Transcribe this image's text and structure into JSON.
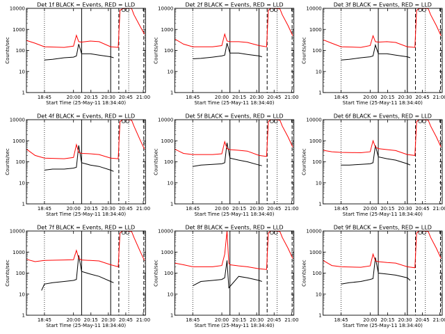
{
  "chart_data": [
    {
      "type": "line",
      "title": "Det 1f BLACK = Events, RED = LLD",
      "xlabel": "Start Time (25-May-11 18:34:40)",
      "ylabel": "Counts/sec",
      "ylog": true,
      "ylim": [
        1,
        10000
      ],
      "xlim": [
        1115,
        1320
      ],
      "xticks": [
        "18:45",
        "20:00",
        "20:15",
        "20:30",
        "20:45",
        "21:00"
      ],
      "y_tick_labels": [
        "1",
        "10",
        "100",
        "1000",
        "10000"
      ],
      "solid_markers": [
        1210,
        1260
      ],
      "dotted_markers": [
        1146,
        1291
      ],
      "dashed_markers": [
        1274,
        1317
      ],
      "series": [
        {
          "name": "BLACK = Events",
          "color": "#000000",
          "x": [
            1146,
            1160,
            1180,
            1196,
            1201,
            1205,
            1210,
            1225,
            1240,
            1260,
            1265
          ],
          "y": [
            35,
            38,
            45,
            48,
            55,
            200,
            70,
            70,
            60,
            50,
            45
          ]
        },
        {
          "name": "RED = LLD",
          "color": "#ff0000",
          "x": [
            1115,
            1130,
            1146,
            1180,
            1196,
            1201,
            1205,
            1210,
            1225,
            1240,
            1260,
            1273,
            1276,
            1280,
            1286,
            1296,
            1300,
            1310,
            1318
          ],
          "y": [
            300,
            220,
            150,
            140,
            160,
            520,
            260,
            250,
            280,
            260,
            150,
            140,
            8000,
            9500,
            10000,
            9800,
            5000,
            1500,
            600
          ]
        }
      ]
    },
    {
      "type": "line",
      "title": "Det 2f BLACK = Events, RED = LLD",
      "xlabel": "Start Time (25-May-11 18:34:40)",
      "ylabel": "Counts/sec",
      "ylog": true,
      "ylim": [
        1,
        10000
      ],
      "xlim": [
        1115,
        1320
      ],
      "xticks": [
        "18:45",
        "20:00",
        "20:15",
        "20:30",
        "20:45",
        "21:00"
      ],
      "y_tick_labels": [
        "1",
        "10",
        "100",
        "1000",
        "10000"
      ],
      "solid_markers": [
        1210,
        1260
      ],
      "dotted_markers": [
        1146,
        1291
      ],
      "dashed_markers": [
        1274,
        1317
      ],
      "series": [
        {
          "name": "BLACK = Events",
          "color": "#000000",
          "x": [
            1146,
            1160,
            1180,
            1196,
            1201,
            1205,
            1210,
            1225,
            1240,
            1260,
            1265
          ],
          "y": [
            40,
            42,
            48,
            55,
            60,
            220,
            75,
            75,
            65,
            55,
            50
          ]
        },
        {
          "name": "RED = LLD",
          "color": "#ff0000",
          "x": [
            1115,
            1130,
            1146,
            1180,
            1196,
            1201,
            1205,
            1210,
            1225,
            1240,
            1260,
            1273,
            1276,
            1280,
            1286,
            1296,
            1300,
            1310,
            1318
          ],
          "y": [
            350,
            200,
            150,
            150,
            170,
            600,
            280,
            260,
            260,
            240,
            170,
            150,
            8000,
            10000,
            10000,
            9500,
            5000,
            1500,
            500
          ]
        }
      ]
    },
    {
      "type": "line",
      "title": "Det 3f BLACK = Events, RED = LLD",
      "xlabel": "Start Time (25-May-11 18:34:40)",
      "ylabel": "Counts/sec",
      "ylog": true,
      "ylim": [
        1,
        10000
      ],
      "xlim": [
        1115,
        1320
      ],
      "xticks": [
        "18:45",
        "20:00",
        "20:15",
        "20:30",
        "20:45",
        "21:00"
      ],
      "y_tick_labels": [
        "1",
        "10",
        "100",
        "1000",
        "10000"
      ],
      "solid_markers": [
        1210,
        1260
      ],
      "dotted_markers": [
        1146,
        1291
      ],
      "dashed_markers": [
        1274,
        1317
      ],
      "series": [
        {
          "name": "BLACK = Events",
          "color": "#000000",
          "x": [
            1146,
            1160,
            1180,
            1196,
            1201,
            1205,
            1210,
            1225,
            1240,
            1260,
            1265
          ],
          "y": [
            35,
            38,
            45,
            50,
            55,
            180,
            70,
            70,
            60,
            50,
            45
          ]
        },
        {
          "name": "RED = LLD",
          "color": "#ff0000",
          "x": [
            1115,
            1130,
            1146,
            1180,
            1196,
            1201,
            1205,
            1210,
            1225,
            1240,
            1260,
            1273,
            1276,
            1280,
            1286,
            1296,
            1300,
            1310,
            1318
          ],
          "y": [
            320,
            220,
            150,
            140,
            170,
            500,
            260,
            250,
            260,
            240,
            150,
            140,
            8000,
            9800,
            10000,
            9600,
            5000,
            1500,
            500
          ]
        }
      ]
    },
    {
      "type": "line",
      "title": "Det 4f BLACK = Events, RED = LLD",
      "xlabel": "Start Time (25-May-11 18:34:40)",
      "ylabel": "Counts/sec",
      "ylog": true,
      "ylim": [
        1,
        10000
      ],
      "xlim": [
        1115,
        1320
      ],
      "xticks": [
        "18:45",
        "20:00",
        "20:15",
        "20:30",
        "20:45",
        "21:00"
      ],
      "y_tick_labels": [
        "1",
        "10",
        "100",
        "1000",
        "10000"
      ],
      "solid_markers": [
        1210,
        1260
      ],
      "dotted_markers": [
        1146,
        1291
      ],
      "dashed_markers": [
        1274,
        1317
      ],
      "series": [
        {
          "name": "BLACK = Events",
          "color": "#000000",
          "x": [
            1146,
            1160,
            1180,
            1196,
            1201,
            1205,
            1210,
            1225,
            1240,
            1260,
            1265
          ],
          "y": [
            40,
            45,
            45,
            50,
            55,
            600,
            90,
            70,
            60,
            40,
            35
          ]
        },
        {
          "name": "RED = LLD",
          "color": "#ff0000",
          "x": [
            1115,
            1130,
            1146,
            1180,
            1196,
            1201,
            1205,
            1210,
            1225,
            1240,
            1260,
            1273,
            1276,
            1280,
            1286,
            1296,
            1300,
            1310,
            1318
          ],
          "y": [
            400,
            200,
            150,
            140,
            160,
            650,
            280,
            250,
            240,
            220,
            150,
            140,
            8000,
            10000,
            10000,
            9500,
            5000,
            1200,
            400
          ]
        }
      ]
    },
    {
      "type": "line",
      "title": "Det 5f BLACK = Events, RED = LLD",
      "xlabel": "Start Time (25-May-11 18:34:40)",
      "ylabel": "Counts/sec",
      "ylog": true,
      "ylim": [
        1,
        10000
      ],
      "xlim": [
        1115,
        1320
      ],
      "xticks": [
        "18:45",
        "20:00",
        "20:15",
        "20:30",
        "20:45",
        "21:00"
      ],
      "y_tick_labels": [
        "1",
        "10",
        "100",
        "1000",
        "10000"
      ],
      "solid_markers": [
        1210,
        1260
      ],
      "dotted_markers": [
        1146,
        1291
      ],
      "dashed_markers": [
        1274,
        1317
      ],
      "series": [
        {
          "name": "BLACK = Events",
          "color": "#000000",
          "x": [
            1146,
            1160,
            1180,
            1196,
            1201,
            1205,
            1210,
            1225,
            1240,
            1260,
            1265
          ],
          "y": [
            60,
            70,
            75,
            80,
            90,
            800,
            150,
            120,
            100,
            70,
            65
          ]
        },
        {
          "name": "RED = LLD",
          "color": "#ff0000",
          "x": [
            1115,
            1130,
            1146,
            1180,
            1196,
            1201,
            1205,
            1210,
            1225,
            1240,
            1260,
            1273,
            1276,
            1280,
            1286,
            1296,
            1300,
            1310,
            1318
          ],
          "y": [
            400,
            250,
            220,
            220,
            240,
            900,
            420,
            380,
            350,
            320,
            200,
            180,
            8000,
            10000,
            10000,
            9500,
            5000,
            1500,
            500
          ]
        }
      ]
    },
    {
      "type": "line",
      "title": "Det 6f BLACK = Events, RED = LLD",
      "xlabel": "Start Time (25-May-11 18:34:40)",
      "ylabel": "Counts/sec",
      "ylog": true,
      "ylim": [
        1,
        10000
      ],
      "xlim": [
        1115,
        1320
      ],
      "xticks": [
        "18:45",
        "20:00",
        "20:15",
        "20:30",
        "20:45",
        "21:00"
      ],
      "y_tick_labels": [
        "1",
        "10",
        "100",
        "1000",
        "10000"
      ],
      "solid_markers": [
        1210,
        1260
      ],
      "dotted_markers": [
        1146,
        1291
      ],
      "dashed_markers": [
        1274,
        1317
      ],
      "series": [
        {
          "name": "BLACK = Events",
          "color": "#000000",
          "x": [
            1146,
            1160,
            1180,
            1196,
            1201,
            1205,
            1210,
            1225,
            1240,
            1260,
            1265
          ],
          "y": [
            70,
            70,
            75,
            80,
            90,
            600,
            170,
            140,
            120,
            80,
            70
          ]
        },
        {
          "name": "RED = LLD",
          "color": "#ff0000",
          "x": [
            1115,
            1130,
            1146,
            1180,
            1196,
            1201,
            1205,
            1210,
            1225,
            1240,
            1260,
            1273,
            1276,
            1280,
            1286,
            1296,
            1300,
            1310,
            1318
          ],
          "y": [
            350,
            300,
            280,
            270,
            300,
            1000,
            500,
            420,
            380,
            340,
            220,
            200,
            8000,
            10000,
            10000,
            9500,
            5000,
            1500,
            500
          ]
        }
      ]
    },
    {
      "type": "line",
      "title": "Det 7f BLACK = Events, RED = LLD",
      "xlabel": "Start Time (25-May-11 18:34:40)",
      "ylabel": "Counts/sec",
      "ylog": true,
      "ylim": [
        1,
        10000
      ],
      "xlim": [
        1115,
        1320
      ],
      "xticks": [
        "18:45",
        "20:00",
        "20:15",
        "20:30",
        "20:45",
        "21:00"
      ],
      "y_tick_labels": [
        "1",
        "10",
        "100",
        "1000",
        "10000"
      ],
      "solid_markers": [
        1210,
        1260
      ],
      "dotted_markers": [
        1146,
        1291
      ],
      "dashed_markers": [
        1274,
        1317
      ],
      "series": [
        {
          "name": "BLACK = Events",
          "color": "#000000",
          "x": [
            1141,
            1146,
            1160,
            1180,
            1196,
            1201,
            1205,
            1210,
            1225,
            1240,
            1260,
            1265
          ],
          "y": [
            15,
            30,
            35,
            40,
            45,
            50,
            700,
            120,
            90,
            70,
            40,
            35
          ]
        },
        {
          "name": "RED = LLD",
          "color": "#ff0000",
          "x": [
            1115,
            1130,
            1146,
            1180,
            1196,
            1201,
            1205,
            1210,
            1225,
            1240,
            1260,
            1273,
            1276,
            1280,
            1286,
            1296,
            1300,
            1310,
            1318
          ],
          "y": [
            450,
            350,
            400,
            420,
            430,
            1200,
            500,
            420,
            400,
            380,
            250,
            200,
            8000,
            10000,
            10000,
            9500,
            5000,
            1200,
            400
          ]
        }
      ]
    },
    {
      "type": "line",
      "title": "Det 8f BLACK = Events, RED = LLD",
      "xlabel": "Start Time (25-May-11 18:34:40)",
      "ylabel": "Counts/sec",
      "ylog": true,
      "ylim": [
        1,
        10000
      ],
      "xlim": [
        1115,
        1320
      ],
      "xticks": [
        "18:45",
        "20:00",
        "20:15",
        "20:30",
        "20:45",
        "21:00"
      ],
      "y_tick_labels": [
        "1",
        "10",
        "100",
        "1000",
        "10000"
      ],
      "solid_markers": [
        1210,
        1260
      ],
      "dotted_markers": [
        1146,
        1291
      ],
      "dashed_markers": [
        1274,
        1317
      ],
      "series": [
        {
          "name": "BLACK = Events",
          "color": "#000000",
          "x": [
            1146,
            1160,
            1180,
            1196,
            1201,
            1205,
            1208,
            1225,
            1240,
            1260,
            1265
          ],
          "y": [
            25,
            40,
            45,
            50,
            60,
            400,
            20,
            70,
            60,
            45,
            40
          ]
        },
        {
          "name": "RED = LLD",
          "color": "#ff0000",
          "x": [
            1115,
            1130,
            1146,
            1180,
            1196,
            1201,
            1205,
            1208,
            1210,
            1225,
            1240,
            1260,
            1273,
            1276,
            1280,
            1286,
            1296,
            1300,
            1310,
            1318
          ],
          "y": [
            300,
            250,
            200,
            200,
            230,
            800,
            10000,
            300,
            250,
            220,
            200,
            160,
            150,
            8000,
            10000,
            10000,
            9500,
            5000,
            1500,
            500
          ]
        }
      ]
    },
    {
      "type": "line",
      "title": "Det 9f BLACK = Events, RED = LLD",
      "xlabel": "Start Time (25-May-11 18:34:40)",
      "ylabel": "Counts/sec",
      "ylog": true,
      "ylim": [
        1,
        10000
      ],
      "xlim": [
        1115,
        1320
      ],
      "xticks": [
        "18:45",
        "20:00",
        "20:15",
        "20:30",
        "20:45",
        "21:00"
      ],
      "y_tick_labels": [
        "1",
        "10",
        "100",
        "1000",
        "10000"
      ],
      "solid_markers": [
        1210,
        1260
      ],
      "dotted_markers": [
        1146,
        1291
      ],
      "dashed_markers": [
        1274,
        1317
      ],
      "series": [
        {
          "name": "BLACK = Events",
          "color": "#000000",
          "x": [
            1146,
            1160,
            1180,
            1196,
            1201,
            1205,
            1210,
            1225,
            1240,
            1260,
            1265
          ],
          "y": [
            30,
            35,
            40,
            50,
            55,
            550,
            100,
            90,
            80,
            60,
            45
          ]
        },
        {
          "name": "RED = LLD",
          "color": "#ff0000",
          "x": [
            1115,
            1130,
            1146,
            1180,
            1196,
            1201,
            1205,
            1210,
            1225,
            1240,
            1260,
            1273,
            1276,
            1280,
            1286,
            1296,
            1300,
            1310,
            1318
          ],
          "y": [
            400,
            230,
            200,
            190,
            220,
            800,
            380,
            350,
            320,
            300,
            200,
            180,
            8000,
            10000,
            10000,
            9500,
            5000,
            1500,
            500
          ]
        }
      ]
    }
  ]
}
